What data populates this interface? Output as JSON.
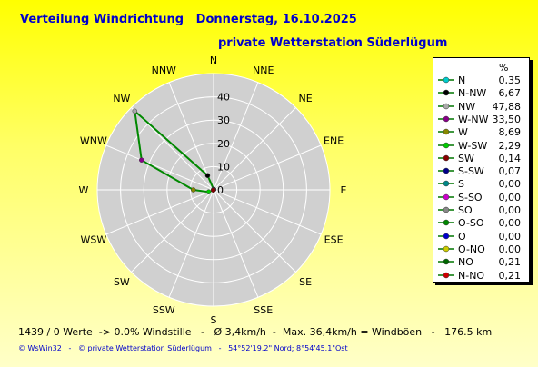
{
  "header": {
    "title": "Verteilung Windrichtung   Donnerstag, 16.10.2025",
    "subtitle": "private Wetterstation Süderlügum"
  },
  "legend": {
    "unit": "%",
    "items": [
      {
        "label": "N",
        "value": "0,35",
        "color": "#00cccc"
      },
      {
        "label": "N-NW",
        "value": "6,67",
        "color": "#000000"
      },
      {
        "label": "NW",
        "value": "47,88",
        "color": "#aaaaaa"
      },
      {
        "label": "W-NW",
        "value": "33,50",
        "color": "#880088"
      },
      {
        "label": "W",
        "value": "8,69",
        "color": "#888800"
      },
      {
        "label": "W-SW",
        "value": "2,29",
        "color": "#00cc00"
      },
      {
        "label": "SW",
        "value": "0,14",
        "color": "#880000"
      },
      {
        "label": "S-SW",
        "value": "0,07",
        "color": "#000088"
      },
      {
        "label": "S",
        "value": "0,00",
        "color": "#008888"
      },
      {
        "label": "S-SO",
        "value": "0,00",
        "color": "#cc00cc"
      },
      {
        "label": "SO",
        "value": "0,00",
        "color": "#888888"
      },
      {
        "label": "O-SO",
        "value": "0,00",
        "color": "#008800"
      },
      {
        "label": "O",
        "value": "0,00",
        "color": "#0000cc"
      },
      {
        "label": "O-NO",
        "value": "0,00",
        "color": "#cccc00"
      },
      {
        "label": "NO",
        "value": "0,21",
        "color": "#006600"
      },
      {
        "label": "N-NO",
        "value": "0,21",
        "color": "#cc0000"
      }
    ]
  },
  "chart_data": {
    "type": "radar",
    "directions": [
      "N",
      "NNE",
      "NE",
      "ENE",
      "E",
      "ESE",
      "SE",
      "SSE",
      "S",
      "SSW",
      "SW",
      "WSW",
      "W",
      "WNW",
      "NW",
      "NNW"
    ],
    "values": [
      0.35,
      0.21,
      0.21,
      0.0,
      0.0,
      0.0,
      0.0,
      0.0,
      0.0,
      0.07,
      0.14,
      2.29,
      8.69,
      33.5,
      47.88,
      6.67
    ],
    "rlim": [
      0,
      50
    ],
    "ticks": [
      "0",
      "10",
      "20",
      "30",
      "40"
    ],
    "line_color": "#008800",
    "disc_color": "#d0d0d0"
  },
  "footer": {
    "stats": "1439 / 0 Werte  -> 0.0% Windstille   -   Ø 3,4km/h  -  Max. 36,4km/h = Windböen   -   176.5 km",
    "credit": "© WsWin32   -   © private Wetterstation Süderlügum   -   54°52'19.2\" Nord; 8°54'45.1\"Ost"
  }
}
